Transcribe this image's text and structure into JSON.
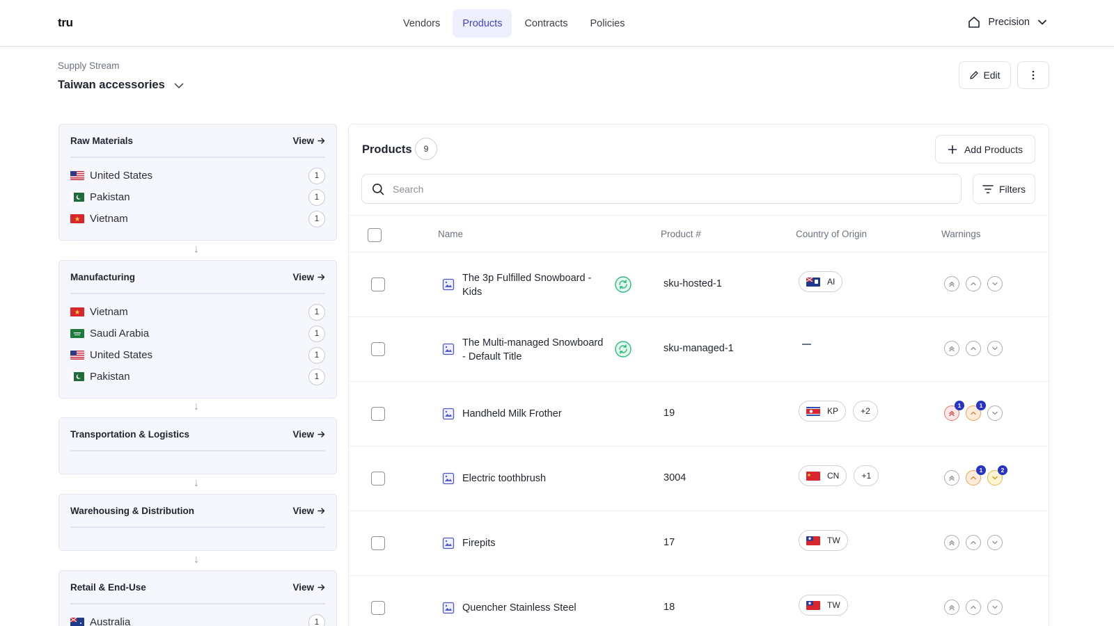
{
  "app": {
    "logo": "tru"
  },
  "nav": {
    "items": [
      {
        "label": "Vendors"
      },
      {
        "label": "Products"
      },
      {
        "label": "Contracts"
      },
      {
        "label": "Policies"
      }
    ]
  },
  "org": {
    "name": "Precision"
  },
  "header": {
    "breadcrumb": "Supply Stream",
    "title": "Taiwan accessories",
    "edit_label": "Edit"
  },
  "stages": [
    {
      "title": "Raw Materials",
      "view": "View",
      "items": [
        {
          "country": "United States",
          "count": "1"
        },
        {
          "country": "Pakistan",
          "count": "1"
        },
        {
          "country": "Vietnam",
          "count": "1"
        }
      ]
    },
    {
      "title": "Manufacturing",
      "view": "View",
      "items": [
        {
          "country": "Vietnam",
          "count": "1"
        },
        {
          "country": "Saudi Arabia",
          "count": "1"
        },
        {
          "country": "United States",
          "count": "1"
        },
        {
          "country": "Pakistan",
          "count": "1"
        }
      ]
    },
    {
      "title": "Transportation & Logistics",
      "view": "View",
      "items": []
    },
    {
      "title": "Warehousing & Distribution",
      "view": "View",
      "items": []
    },
    {
      "title": "Retail & End-Use",
      "view": "View",
      "items": [
        {
          "country": "Australia",
          "count": "1"
        }
      ]
    }
  ],
  "products": {
    "title": "Products",
    "count": "9",
    "add_label": "Add Products",
    "search_placeholder": "Search",
    "filters_label": "Filters",
    "columns": {
      "name": "Name",
      "sku": "Product #",
      "origin": "Country of Origin",
      "warnings": "Warnings"
    },
    "rows": [
      {
        "name": "The 3p Fulfilled Snowboard - Kids",
        "sku": "sku-hosted-1",
        "origin": "AI",
        "extra": "",
        "synced": true,
        "warnings": [
          {
            "level": "none",
            "count": ""
          },
          {
            "level": "none",
            "count": ""
          },
          {
            "level": "none",
            "count": ""
          }
        ]
      },
      {
        "name": "The Multi-managed Snowboard - Default Title",
        "sku": "sku-managed-1",
        "origin": "",
        "extra": "",
        "synced": true,
        "warnings": [
          {
            "level": "none",
            "count": ""
          },
          {
            "level": "none",
            "count": ""
          },
          {
            "level": "none",
            "count": ""
          }
        ]
      },
      {
        "name": "Handheld Milk Frother",
        "sku": "19",
        "origin": "KP",
        "extra": "+2",
        "synced": false,
        "warnings": [
          {
            "level": "high",
            "count": "1"
          },
          {
            "level": "medium",
            "count": "1"
          },
          {
            "level": "none",
            "count": ""
          }
        ]
      },
      {
        "name": "Electric toothbrush",
        "sku": "3004",
        "origin": "CN",
        "extra": "+1",
        "synced": false,
        "warnings": [
          {
            "level": "none",
            "count": ""
          },
          {
            "level": "medium",
            "count": "1"
          },
          {
            "level": "low",
            "count": "2"
          }
        ]
      },
      {
        "name": "Firepits",
        "sku": "17",
        "origin": "TW",
        "extra": "",
        "synced": false,
        "warnings": [
          {
            "level": "none",
            "count": ""
          },
          {
            "level": "none",
            "count": ""
          },
          {
            "level": "none",
            "count": ""
          }
        ]
      },
      {
        "name": "Quencher Stainless Steel",
        "sku": "18",
        "origin": "TW",
        "extra": "",
        "synced": false,
        "warnings": [
          {
            "level": "none",
            "count": ""
          },
          {
            "level": "none",
            "count": ""
          },
          {
            "level": "none",
            "count": ""
          }
        ]
      }
    ]
  }
}
